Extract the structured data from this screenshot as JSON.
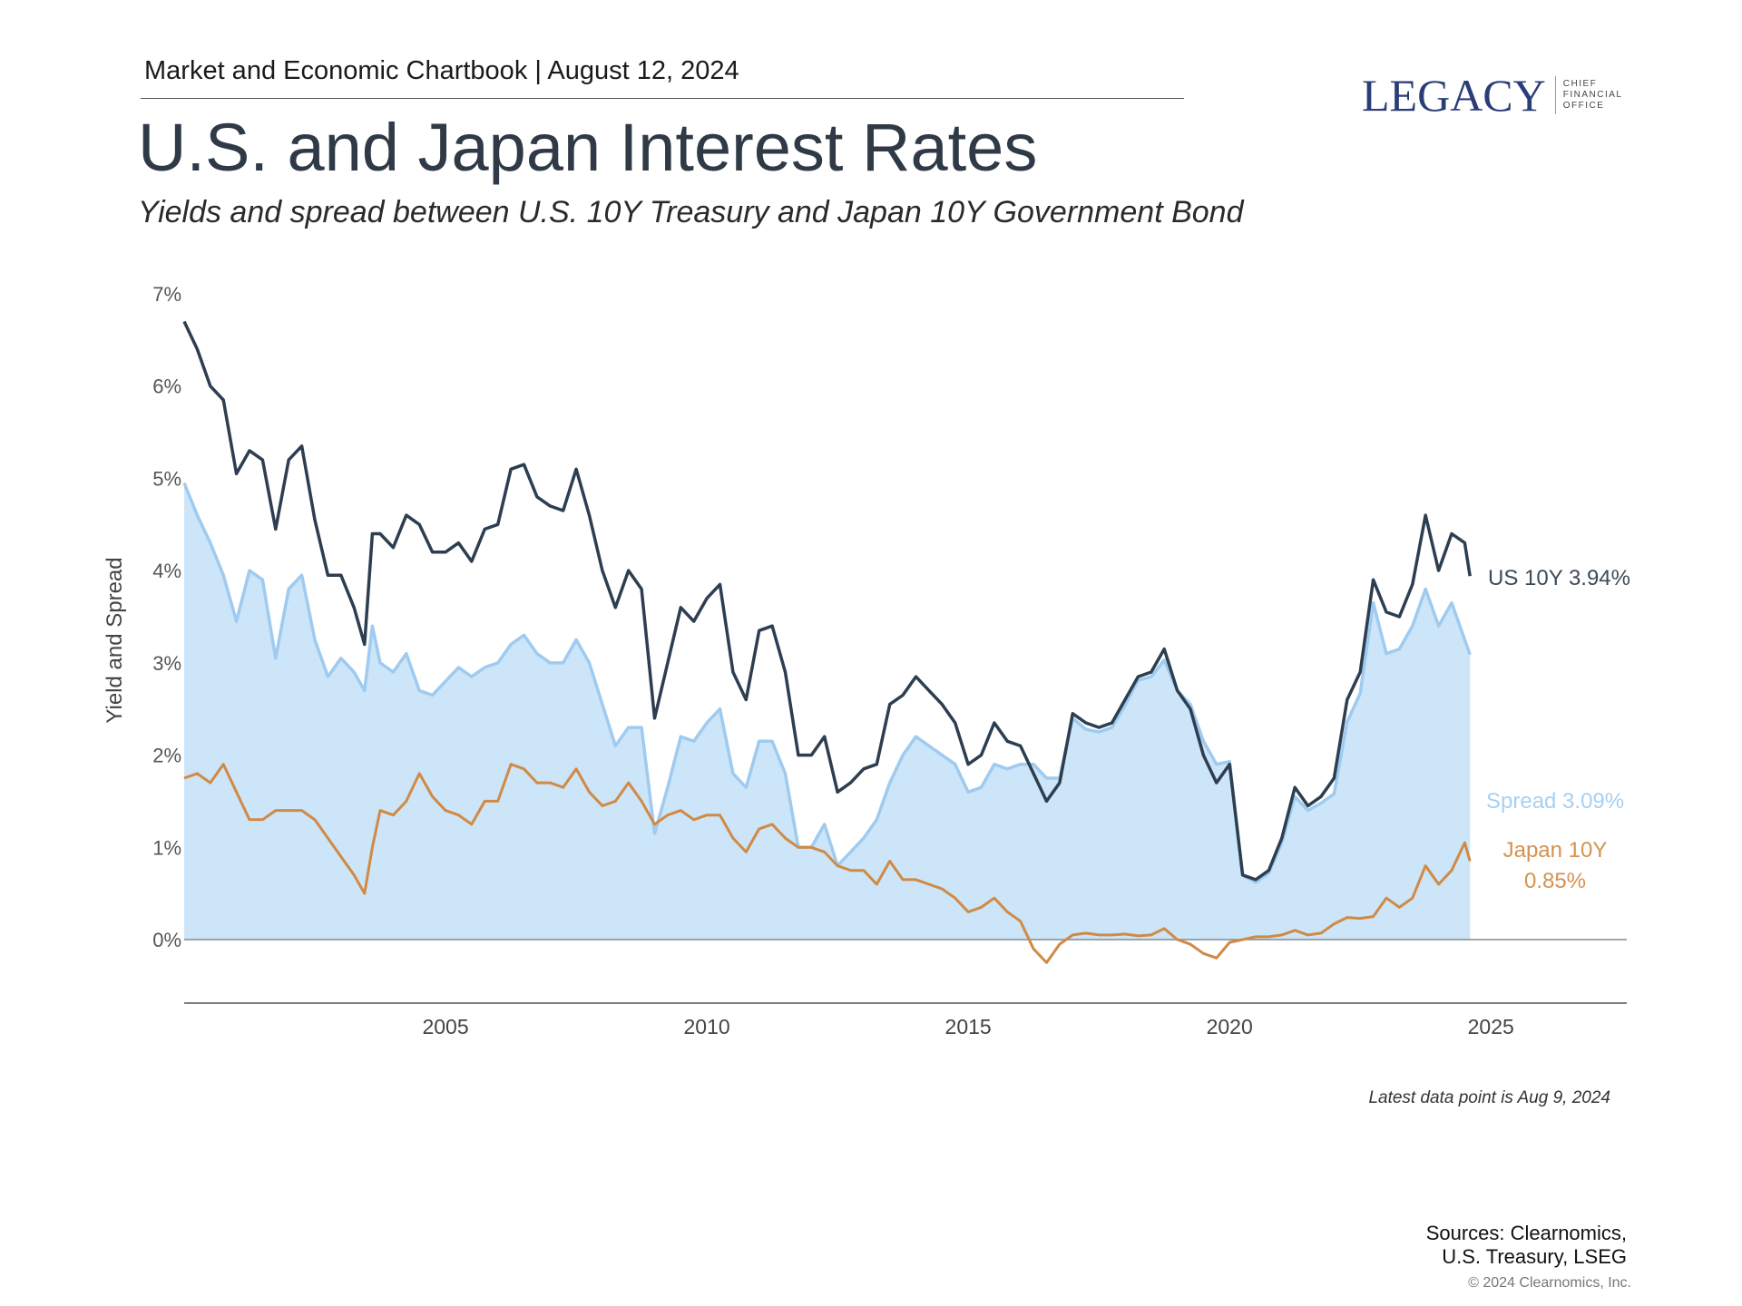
{
  "header": {
    "chartbook": "Market and Economic Chartbook | August 12, 2024",
    "title": "U.S. and Japan Interest Rates",
    "subtitle": "Yields and spread between U.S. 10Y Treasury and Japan 10Y Government Bond"
  },
  "logo": {
    "word": "LEGACY",
    "sub": [
      "CHIEF",
      "FINANCIAL",
      "OFFICE"
    ]
  },
  "footer": {
    "note": "Latest data point is Aug 9, 2024",
    "sources_line1": "Sources: Clearnomics,",
    "sources_line2": "U.S. Treasury, LSEG",
    "copyright": "© 2024 Clearnomics, Inc."
  },
  "chart_data": {
    "type": "line",
    "title": "U.S. and Japan Interest Rates",
    "subtitle": "Yields and spread between U.S. 10Y Treasury and Japan 10Y Government Bond",
    "xlabel": "",
    "ylabel": "Yield and Spread",
    "xlim": [
      2000,
      2027.6
    ],
    "ylim": [
      -0.68,
      7
    ],
    "x_ticks": [
      2005,
      2010,
      2015,
      2020,
      2025
    ],
    "y_ticks": [
      0,
      1,
      2,
      3,
      4,
      5,
      6,
      7
    ],
    "y_tick_labels": [
      "0%",
      "1%",
      "2%",
      "3%",
      "4%",
      "5%",
      "6%",
      "7%"
    ],
    "grid": false,
    "x": [
      2000.0,
      2000.25,
      2000.5,
      2000.75,
      2001.0,
      2001.25,
      2001.5,
      2001.75,
      2002.0,
      2002.25,
      2002.5,
      2002.75,
      2003.0,
      2003.25,
      2003.45,
      2003.6,
      2003.75,
      2004.0,
      2004.25,
      2004.5,
      2004.75,
      2005.0,
      2005.25,
      2005.5,
      2005.75,
      2006.0,
      2006.25,
      2006.5,
      2006.75,
      2007.0,
      2007.25,
      2007.5,
      2007.75,
      2008.0,
      2008.25,
      2008.5,
      2008.75,
      2009.0,
      2009.25,
      2009.5,
      2009.75,
      2010.0,
      2010.25,
      2010.5,
      2010.75,
      2011.0,
      2011.25,
      2011.5,
      2011.75,
      2012.0,
      2012.25,
      2012.5,
      2012.75,
      2013.0,
      2013.25,
      2013.5,
      2013.75,
      2014.0,
      2014.25,
      2014.5,
      2014.75,
      2015.0,
      2015.25,
      2015.5,
      2015.75,
      2016.0,
      2016.25,
      2016.5,
      2016.75,
      2017.0,
      2017.25,
      2017.5,
      2017.75,
      2018.0,
      2018.25,
      2018.5,
      2018.75,
      2019.0,
      2019.25,
      2019.5,
      2019.75,
      2020.0,
      2020.25,
      2020.5,
      2020.75,
      2021.0,
      2021.25,
      2021.5,
      2021.75,
      2022.0,
      2022.25,
      2022.5,
      2022.75,
      2023.0,
      2023.25,
      2023.5,
      2023.75,
      2024.0,
      2024.25,
      2024.5,
      2024.6
    ],
    "series": [
      {
        "name": "US 10Y",
        "label": "US 10Y 3.94%",
        "color": "#2d3e50",
        "values": [
          6.7,
          6.4,
          6.0,
          5.85,
          5.05,
          5.3,
          5.2,
          4.45,
          5.2,
          5.35,
          4.55,
          3.95,
          3.95,
          3.6,
          3.2,
          4.4,
          4.4,
          4.25,
          4.6,
          4.5,
          4.2,
          4.2,
          4.3,
          4.1,
          4.45,
          4.5,
          5.1,
          5.15,
          4.8,
          4.7,
          4.65,
          5.1,
          4.6,
          4.0,
          3.6,
          4.0,
          3.8,
          2.4,
          3.0,
          3.6,
          3.45,
          3.7,
          3.85,
          2.9,
          2.6,
          3.35,
          3.4,
          2.9,
          2.0,
          2.0,
          2.2,
          1.6,
          1.7,
          1.85,
          1.9,
          2.55,
          2.65,
          2.85,
          2.7,
          2.55,
          2.35,
          1.9,
          2.0,
          2.35,
          2.15,
          2.1,
          1.8,
          1.5,
          1.7,
          2.45,
          2.35,
          2.3,
          2.35,
          2.6,
          2.85,
          2.9,
          3.15,
          2.7,
          2.5,
          2.0,
          1.7,
          1.9,
          0.7,
          0.65,
          0.75,
          1.1,
          1.65,
          1.45,
          1.55,
          1.75,
          2.6,
          2.9,
          3.9,
          3.55,
          3.5,
          3.85,
          4.6,
          4.0,
          4.4,
          4.3,
          3.94
        ]
      },
      {
        "name": "Spread",
        "label": "Spread 3.09%",
        "color": "#9fcbf0",
        "fill": "#cde5f8",
        "values": [
          4.95,
          4.6,
          4.3,
          3.95,
          3.45,
          4.0,
          3.9,
          3.05,
          3.8,
          3.95,
          3.25,
          2.85,
          3.05,
          2.9,
          2.7,
          3.4,
          3.0,
          2.9,
          3.1,
          2.7,
          2.65,
          2.8,
          2.95,
          2.85,
          2.95,
          3.0,
          3.2,
          3.3,
          3.1,
          3.0,
          3.0,
          3.25,
          3.0,
          2.55,
          2.1,
          2.3,
          2.3,
          1.15,
          1.65,
          2.2,
          2.15,
          2.35,
          2.5,
          1.8,
          1.65,
          2.15,
          2.15,
          1.8,
          1.0,
          1.0,
          1.25,
          0.8,
          0.95,
          1.1,
          1.3,
          1.7,
          2.0,
          2.2,
          2.1,
          2.0,
          1.9,
          1.6,
          1.65,
          1.9,
          1.85,
          1.9,
          1.9,
          1.75,
          1.75,
          2.4,
          2.28,
          2.25,
          2.3,
          2.54,
          2.81,
          2.85,
          3.03,
          2.7,
          2.55,
          2.15,
          1.9,
          1.93,
          0.7,
          0.62,
          0.72,
          1.05,
          1.55,
          1.4,
          1.48,
          1.58,
          2.36,
          2.67,
          3.65,
          3.1,
          3.15,
          3.4,
          3.8,
          3.4,
          3.65,
          3.25,
          3.09
        ]
      },
      {
        "name": "Japan 10Y",
        "label_line1": "Japan 10Y",
        "label_line2": "0.85%",
        "color": "#d08a45",
        "values": [
          1.75,
          1.8,
          1.7,
          1.9,
          1.6,
          1.3,
          1.3,
          1.4,
          1.4,
          1.4,
          1.3,
          1.1,
          0.9,
          0.7,
          0.5,
          1.0,
          1.4,
          1.35,
          1.5,
          1.8,
          1.55,
          1.4,
          1.35,
          1.25,
          1.5,
          1.5,
          1.9,
          1.85,
          1.7,
          1.7,
          1.65,
          1.85,
          1.6,
          1.45,
          1.5,
          1.7,
          1.5,
          1.25,
          1.35,
          1.4,
          1.3,
          1.35,
          1.35,
          1.1,
          0.95,
          1.2,
          1.25,
          1.1,
          1.0,
          1.0,
          0.95,
          0.8,
          0.75,
          0.75,
          0.6,
          0.85,
          0.65,
          0.65,
          0.6,
          0.55,
          0.45,
          0.3,
          0.35,
          0.45,
          0.3,
          0.2,
          -0.1,
          -0.25,
          -0.05,
          0.05,
          0.07,
          0.05,
          0.05,
          0.06,
          0.04,
          0.05,
          0.12,
          0.0,
          -0.05,
          -0.15,
          -0.2,
          -0.03,
          0.0,
          0.03,
          0.03,
          0.05,
          0.1,
          0.05,
          0.07,
          0.17,
          0.24,
          0.23,
          0.25,
          0.45,
          0.35,
          0.45,
          0.8,
          0.6,
          0.75,
          1.05,
          0.85
        ]
      }
    ]
  }
}
